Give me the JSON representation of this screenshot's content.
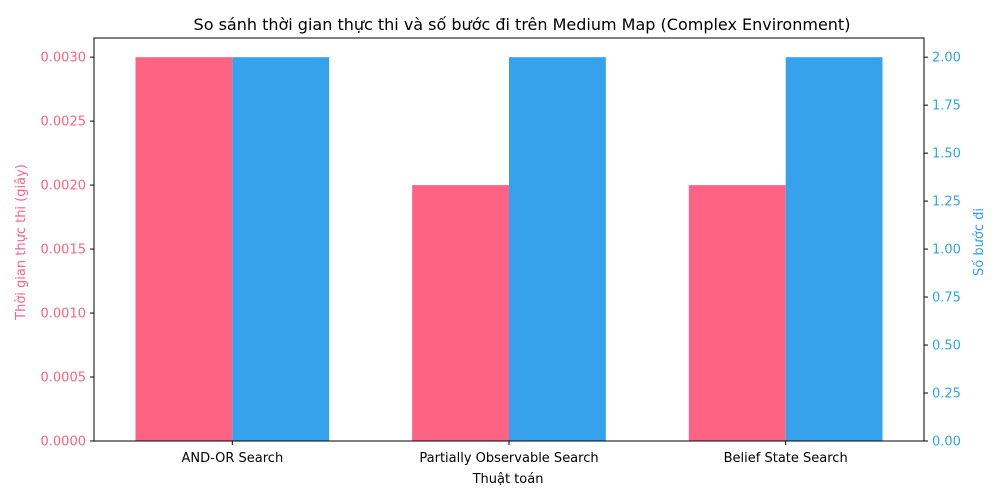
{
  "chart_data": {
    "type": "bar",
    "title": "So sánh thời gian thực thi và số bước đi trên Medium Map (Complex Environment)",
    "xlabel": "Thuật toán",
    "categories": [
      "AND-OR Search",
      "Partially Observable Search",
      "Belief State Search"
    ],
    "series": [
      {
        "values": [
          0.003,
          0.002,
          0.002
        ],
        "axis": "left",
        "color": "#FF6384"
      },
      {
        "values": [
          2,
          2,
          2
        ],
        "axis": "right",
        "color": "#36A2EB"
      }
    ],
    "y_left": {
      "label": "Thời gian thực thi (giây)",
      "ylim": [
        0,
        0.00315
      ],
      "ticks": [
        "0.0000",
        "0.0005",
        "0.0010",
        "0.0015",
        "0.0020",
        "0.0025",
        "0.0030"
      ],
      "color": "#FF6384"
    },
    "y_right": {
      "label": "Số bước đi",
      "ylim": [
        0,
        2.1
      ],
      "ticks": [
        "0.00",
        "0.25",
        "0.50",
        "0.75",
        "1.00",
        "1.25",
        "1.50",
        "1.75",
        "2.00"
      ],
      "color": "#36A2EB"
    },
    "grid": false,
    "legend": "none"
  }
}
